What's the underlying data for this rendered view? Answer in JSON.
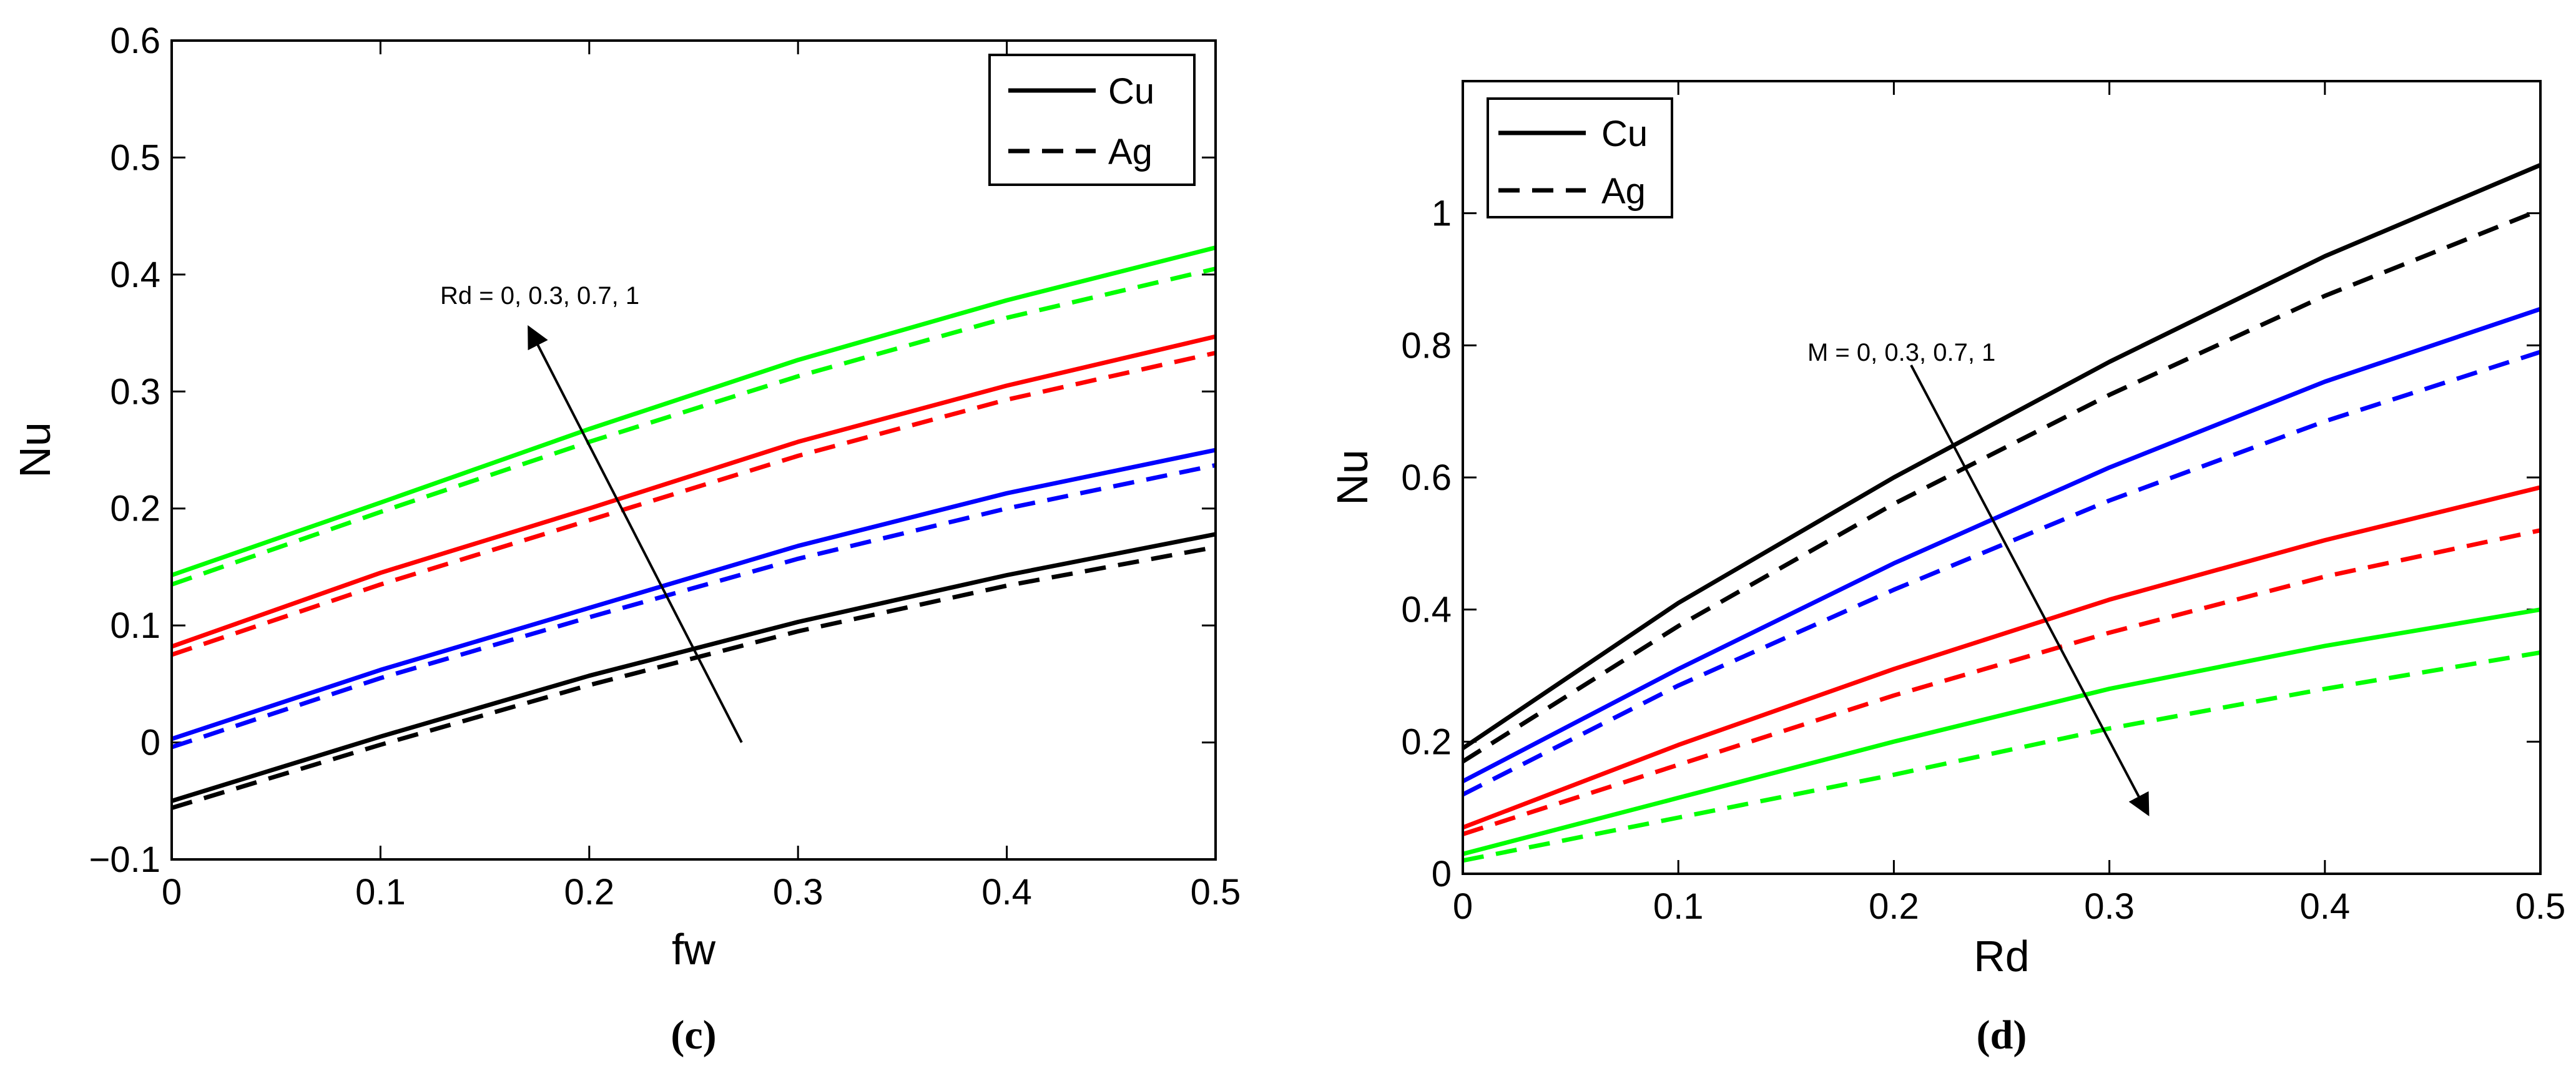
{
  "colors": {
    "black": "#000000",
    "blue": "#0000ff",
    "red": "#ff0000",
    "green": "#00ff00"
  },
  "chart_data": [
    {
      "type": "line",
      "caption": "(c)",
      "xlabel": "fw",
      "ylabel": "Nu",
      "xlim": [
        0,
        0.5
      ],
      "ylim": [
        -0.1,
        0.6
      ],
      "xticks": [
        "0",
        "0.1",
        "0.2",
        "0.3",
        "0.4",
        "0.5"
      ],
      "yticks": [
        "−0.1",
        "0",
        "0.1",
        "0.2",
        "0.3",
        "0.4",
        "0.5",
        "0.6"
      ],
      "xtick_values": [
        0,
        0.1,
        0.2,
        0.3,
        0.4,
        0.5
      ],
      "ytick_values": [
        -0.1,
        0,
        0.1,
        0.2,
        0.3,
        0.4,
        0.5,
        0.6
      ],
      "legend": {
        "position": "top-right",
        "entries": [
          {
            "label": "Cu",
            "style": "solid"
          },
          {
            "label": "Ag",
            "style": "dashed"
          }
        ]
      },
      "annotation": {
        "text": "Rd = 0, 0.3, 0.7, 1",
        "arrow_from": [
          0.273,
          0.0
        ],
        "arrow_to": [
          0.171,
          0.355
        ]
      },
      "x": [
        0,
        0.1,
        0.2,
        0.3,
        0.4,
        0.5
      ],
      "series": [
        {
          "name": "Cu, Rd = 0",
          "color": "black",
          "style": "solid",
          "values": [
            -0.05,
            0.005,
            0.057,
            0.103,
            0.143,
            0.178
          ]
        },
        {
          "name": "Ag, Rd = 0",
          "color": "black",
          "style": "dashed",
          "values": [
            -0.056,
            -0.002,
            0.049,
            0.095,
            0.134,
            0.167
          ]
        },
        {
          "name": "Cu, Rd = 0.3",
          "color": "blue",
          "style": "solid",
          "values": [
            0.003,
            0.062,
            0.115,
            0.168,
            0.213,
            0.25
          ]
        },
        {
          "name": "Ag, Rd = 0.3",
          "color": "blue",
          "style": "dashed",
          "values": [
            -0.004,
            0.055,
            0.107,
            0.157,
            0.2,
            0.237
          ]
        },
        {
          "name": "Cu, Rd = 0.7",
          "color": "red",
          "style": "solid",
          "values": [
            0.082,
            0.145,
            0.2,
            0.257,
            0.305,
            0.347
          ]
        },
        {
          "name": "Ag, Rd = 0.7",
          "color": "red",
          "style": "dashed",
          "values": [
            0.075,
            0.135,
            0.19,
            0.245,
            0.293,
            0.333
          ]
        },
        {
          "name": "Cu, Rd = 1",
          "color": "green",
          "style": "solid",
          "values": [
            0.143,
            0.205,
            0.268,
            0.327,
            0.378,
            0.423
          ]
        },
        {
          "name": "Ag, Rd = 1",
          "color": "green",
          "style": "dashed",
          "values": [
            0.135,
            0.197,
            0.257,
            0.313,
            0.363,
            0.405
          ]
        }
      ]
    },
    {
      "type": "line",
      "caption": "(d)",
      "xlabel": "Rd",
      "ylabel": "Nu",
      "xlim": [
        0,
        0.5
      ],
      "ylim": [
        0,
        1.2
      ],
      "xticks": [
        "0",
        "0.1",
        "0.2",
        "0.3",
        "0.4",
        "0.5"
      ],
      "yticks": [
        "0",
        "0.2",
        "0.4",
        "0.6",
        "0.8",
        "1"
      ],
      "xtick_values": [
        0,
        0.1,
        0.2,
        0.3,
        0.4,
        0.5
      ],
      "ytick_values": [
        0,
        0.2,
        0.4,
        0.6,
        0.8,
        1.0
      ],
      "legend": {
        "position": "top-left",
        "entries": [
          {
            "label": "Cu",
            "style": "solid"
          },
          {
            "label": "Ag",
            "style": "dashed"
          }
        ]
      },
      "annotation": {
        "text": "M = 0, 0.3, 0.7, 1",
        "arrow_from": [
          0.208,
          0.77
        ],
        "arrow_to": [
          0.318,
          0.09
        ]
      },
      "x": [
        0,
        0.1,
        0.2,
        0.3,
        0.4,
        0.5
      ],
      "series": [
        {
          "name": "Cu, M = 0",
          "color": "black",
          "style": "solid",
          "values": [
            0.19,
            0.41,
            0.6,
            0.775,
            0.935,
            1.073
          ]
        },
        {
          "name": "Ag, M = 0",
          "color": "black",
          "style": "dashed",
          "values": [
            0.17,
            0.375,
            0.56,
            0.725,
            0.875,
            1.005
          ]
        },
        {
          "name": "Cu, M = 0.3",
          "color": "blue",
          "style": "solid",
          "values": [
            0.14,
            0.31,
            0.47,
            0.615,
            0.745,
            0.855
          ]
        },
        {
          "name": "Ag, M = 0.3",
          "color": "blue",
          "style": "dashed",
          "values": [
            0.12,
            0.285,
            0.43,
            0.565,
            0.685,
            0.79
          ]
        },
        {
          "name": "Cu, M = 0.7",
          "color": "red",
          "style": "solid",
          "values": [
            0.07,
            0.195,
            0.31,
            0.415,
            0.505,
            0.585
          ]
        },
        {
          "name": "Ag, M = 0.7",
          "color": "red",
          "style": "dashed",
          "values": [
            0.06,
            0.165,
            0.27,
            0.365,
            0.45,
            0.52
          ]
        },
        {
          "name": "Cu, M = 1",
          "color": "green",
          "style": "solid",
          "values": [
            0.03,
            0.115,
            0.2,
            0.28,
            0.345,
            0.4
          ]
        },
        {
          "name": "Ag, M = 1",
          "color": "green",
          "style": "dashed",
          "values": [
            0.02,
            0.085,
            0.15,
            0.22,
            0.28,
            0.335
          ]
        }
      ]
    }
  ]
}
